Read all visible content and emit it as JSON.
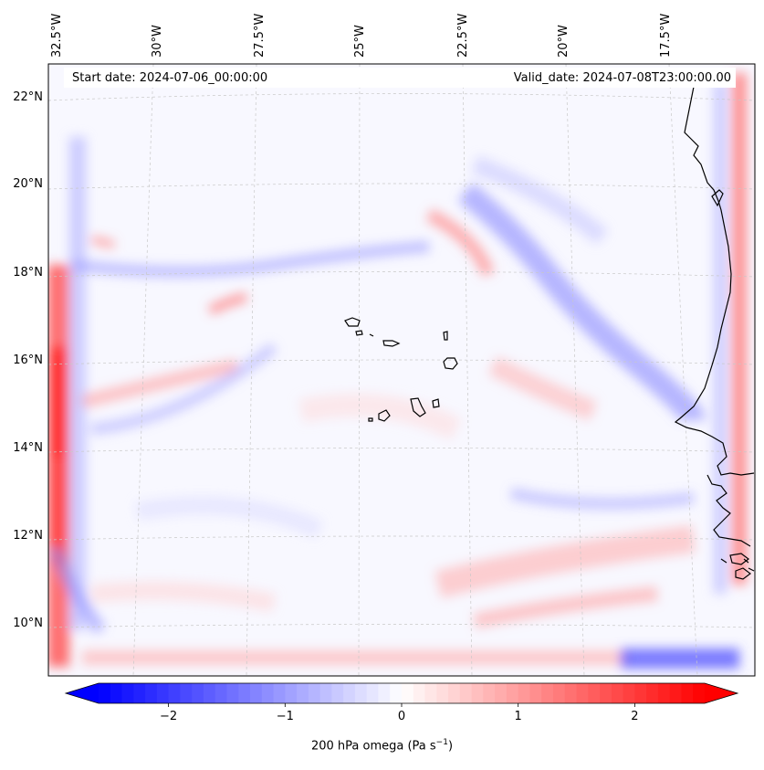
{
  "map": {
    "start_date": "Start date: 2024-07-06_00:00:00",
    "valid_date": "Valid_date: 2024-07-08T23:00:00.00",
    "lon_labels": [
      "32.5°W",
      "30°W",
      "27.5°W",
      "25°W",
      "22.5°W",
      "20°W",
      "17.5°W"
    ],
    "lat_labels": [
      "22°N",
      "20°N",
      "18°N",
      "16°N",
      "14°N",
      "12°N",
      "10°N"
    ]
  },
  "colorbar": {
    "ticks": [
      "−2",
      "−1",
      "0",
      "1",
      "2"
    ],
    "tick_values": [
      -2,
      -1,
      0,
      1,
      2
    ],
    "min": -2.6,
    "max": 2.6,
    "label_prefix": "200 hPa omega (Pa s",
    "label_exp": "−1",
    "label_suffix": ")",
    "colors": {
      "low": "#0000ff",
      "mid": "#ffffff",
      "high": "#ff0000"
    }
  }
}
